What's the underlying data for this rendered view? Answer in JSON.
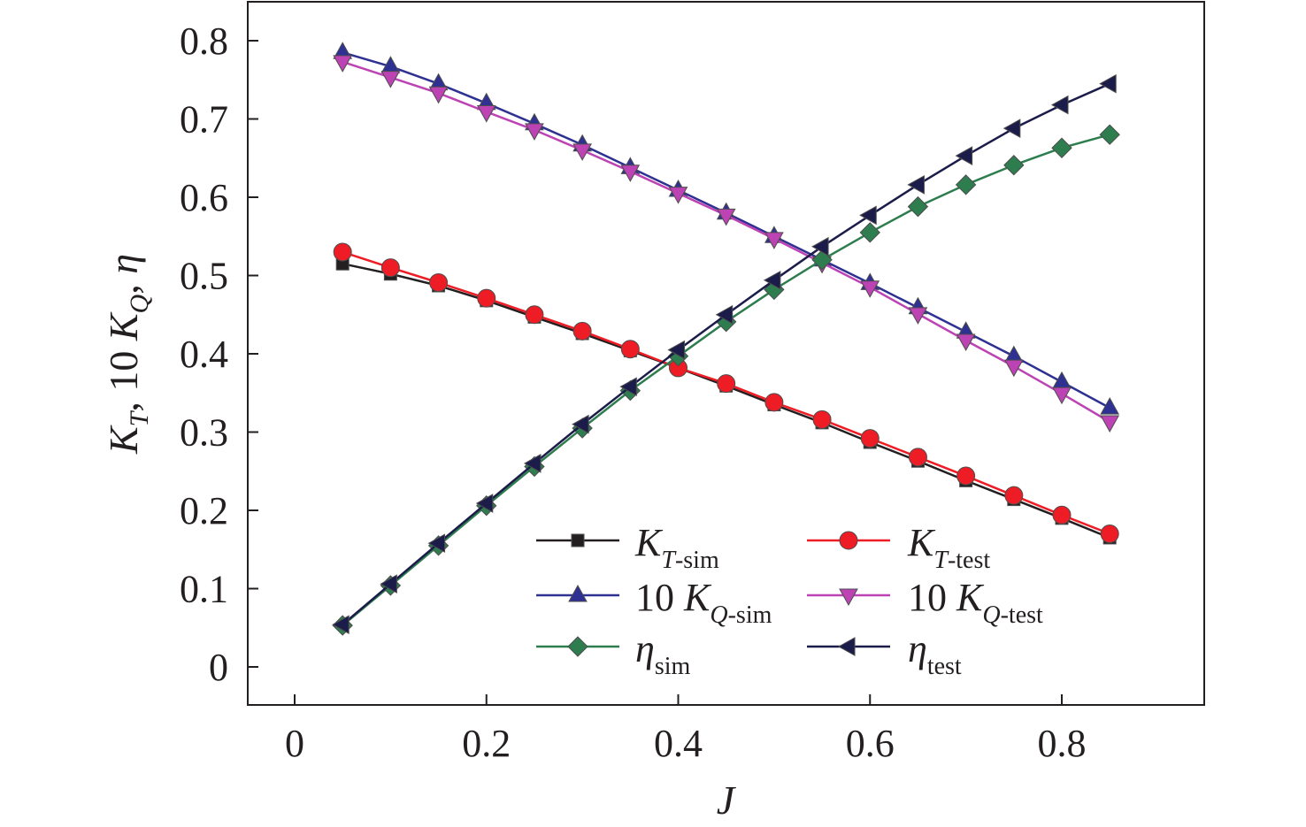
{
  "chart_data": {
    "type": "line",
    "xlabel": "J",
    "ylabel": "K_T, 10 K_Q, η",
    "xlim": [
      -0.05,
      0.95
    ],
    "ylim": [
      -0.05,
      0.85
    ],
    "xticks": [
      0,
      0.2,
      0.4,
      0.6,
      0.8
    ],
    "xtick_labels": [
      "0",
      "0.2",
      "0.4",
      "0.6",
      "0.8"
    ],
    "yticks": [
      0,
      0.1,
      0.2,
      0.3,
      0.4,
      0.5,
      0.6,
      0.7,
      0.8
    ],
    "ytick_labels": [
      "0",
      "0.1",
      "0.2",
      "0.3",
      "0.4",
      "0.5",
      "0.6",
      "0.7",
      "0.8"
    ],
    "grid": false,
    "legend_position": "bottom-right, two columns",
    "x": [
      0.05,
      0.1,
      0.15,
      0.2,
      0.25,
      0.3,
      0.35,
      0.4,
      0.45,
      0.5,
      0.55,
      0.6,
      0.65,
      0.7,
      0.75,
      0.8,
      0.85
    ],
    "series": [
      {
        "name": "K_T-sim",
        "main": "K",
        "sub": "T",
        "subtail": "-sim",
        "prefix": "",
        "color": "#231f20",
        "marker": "square",
        "values": [
          0.515,
          0.502,
          0.487,
          0.468,
          0.447,
          0.426,
          0.404,
          0.382,
          0.359,
          0.335,
          0.312,
          0.287,
          0.263,
          0.238,
          0.214,
          0.19,
          0.165
        ]
      },
      {
        "name": "K_T-test",
        "main": "K",
        "sub": "T",
        "subtail": "-test",
        "prefix": "",
        "color": "#ee1c25",
        "marker": "circle",
        "values": [
          0.53,
          0.51,
          0.491,
          0.471,
          0.45,
          0.429,
          0.406,
          0.382,
          0.362,
          0.338,
          0.316,
          0.292,
          0.268,
          0.244,
          0.219,
          0.194,
          0.17
        ]
      },
      {
        "name": "10 K_Q-sim",
        "main": "K",
        "sub": "Q",
        "subtail": "-sim",
        "prefix": "10 ",
        "color": "#2e3192",
        "marker": "triangle-up",
        "values": [
          0.785,
          0.767,
          0.745,
          0.72,
          0.694,
          0.667,
          0.638,
          0.609,
          0.58,
          0.55,
          0.52,
          0.49,
          0.459,
          0.428,
          0.397,
          0.364,
          0.331
        ]
      },
      {
        "name": "10 K_Q-test",
        "main": "K",
        "sub": "Q",
        "subtail": "-test",
        "prefix": "10 ",
        "color": "#bd43b4",
        "marker": "triangle-down",
        "values": [
          0.773,
          0.753,
          0.733,
          0.709,
          0.686,
          0.66,
          0.633,
          0.605,
          0.577,
          0.547,
          0.516,
          0.485,
          0.451,
          0.417,
          0.384,
          0.349,
          0.313
        ]
      },
      {
        "name": "η_sim",
        "main": "η",
        "sub": "sim",
        "subtail": "",
        "prefix": "",
        "color": "#2e7d4f",
        "marker": "diamond",
        "values": [
          0.053,
          0.104,
          0.155,
          0.206,
          0.256,
          0.305,
          0.353,
          0.397,
          0.441,
          0.482,
          0.52,
          0.555,
          0.588,
          0.616,
          0.641,
          0.663,
          0.68
        ]
      },
      {
        "name": "η_test",
        "main": "η",
        "sub": "test",
        "subtail": "",
        "prefix": "",
        "color": "#1c1c4a",
        "marker": "triangle-left",
        "values": [
          0.054,
          0.106,
          0.158,
          0.209,
          0.26,
          0.31,
          0.358,
          0.405,
          0.45,
          0.494,
          0.537,
          0.577,
          0.616,
          0.653,
          0.688,
          0.718,
          0.745
        ]
      }
    ]
  }
}
